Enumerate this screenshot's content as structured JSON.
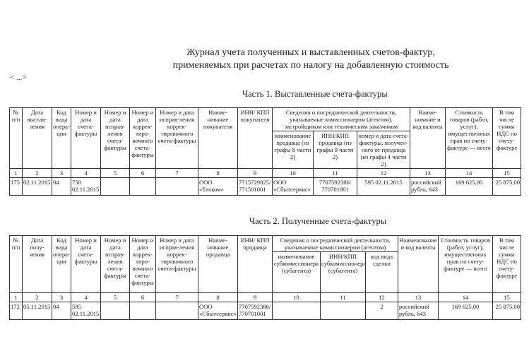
{
  "title": [
    "Журнал учета полученных и выставленных счетов-фактур,",
    "применяемых при расчетах по налогу на добавленную стоимость"
  ],
  "ellipsis": "< ...>",
  "part1": {
    "title": "Часть 1. Выставленные счета-фактуры",
    "headers": [
      "№ п/п",
      "Дата выстав-ления",
      "Код вида опера-ции",
      "Номер и дата счета-фактуры",
      "Номер и дата исправ-ления счета-фактуры",
      "Номер и дата коррек-тиро-вочного счета-фактуры",
      "Номер и дата исправ-ления коррек-тировочного счета-фактуры",
      "Наиме-нование покупателя",
      "ИНН/ КПП покупателя",
      "Сведения о посреднической деятельности, указываемые комиссионером (агентом), застройщиком или техническим заказчиком",
      "Наиме-нование и код валюты",
      "Стоимость товаров (работ, услуг), имущественных прав по счету-фактуре — всего",
      "В том числе сумма НДС по счету-фактуре"
    ],
    "subheaders": [
      "наименование продавца (из графы 8 части 2)",
      "ИНН/КПП продавца (из графы 9 части 2)",
      "номер и дата счета-фактуры, получен-ного от продавца (из графы 4 части 2)"
    ],
    "numbers": [
      "1",
      "2",
      "3",
      "4",
      "5",
      "6",
      "7",
      "8",
      "9",
      "10",
      "11",
      "12",
      "13",
      "14",
      "15"
    ],
    "row": [
      "175",
      "02.11.2015",
      "04",
      "750 02.11.2015",
      "",
      "",
      "",
      "ООО «Техком»",
      "7715729825/ 771501001",
      "ООО «Сбытсервис»",
      "7707592386/ 770701001",
      "595 02.11.2015",
      "российский рубль, 643",
      "169 625,00",
      "25 875,00"
    ]
  },
  "part2": {
    "title": "Часть 2. Полученные счета-фактуры",
    "headers": [
      "№ п/п",
      "Дата полу-чения",
      "Код вида опера-ции",
      "Номер и дата счета-фактуры",
      "Номер и дата исправ-ления счета-фактуры",
      "Номер и дата коррек-тиро-вочного счета-фактуры",
      "Номер и дата исправ-ления коррек-тировочного счета-фактуры",
      "Наиме-нование продавца",
      "ИНН/ КПП продавца",
      "Сведения о посреднической деятельности, указываемые комиссионером (агентом)",
      "Наименование и код валюты",
      "Стоимость товаров (работ, услуг), имущественных прав по счету-фактуре — всего",
      "В том числе сумма НДС по счету-фактуре"
    ],
    "subheaders": [
      "наименование субкомиссионера (субагента)",
      "ИНН/КПП субкомиссионера (субагента)",
      "код вида сделки"
    ],
    "numbers": [
      "1",
      "2",
      "3",
      "4",
      "5",
      "6",
      "7",
      "8",
      "9",
      "10",
      "11",
      "12",
      "13",
      "14",
      "15"
    ],
    "row": [
      "172",
      "05.11.2015",
      "04",
      "595 02.11.2015",
      "",
      "",
      "",
      "ООО «Сбытсервис»",
      "7707592386/ 770701001",
      "",
      "",
      "2",
      "российский рубль, 643",
      "169 625,00",
      "25 875,00"
    ]
  }
}
